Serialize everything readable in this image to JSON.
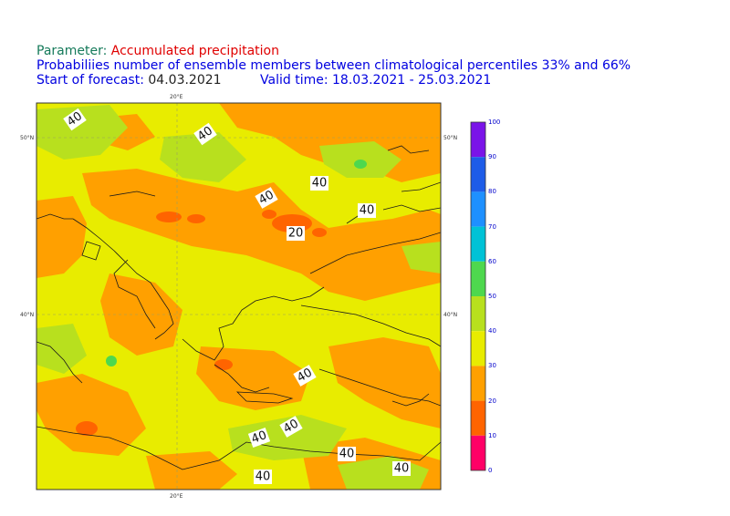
{
  "header": {
    "parameter_label": "Parameter:",
    "parameter_value": "Accumulated precipitation",
    "subtitle": "Probabiliies number of ensemble members between climatological percentiles 33% and 66%",
    "start_label": "Start of forecast:",
    "start_value": "04.03.2021",
    "valid_label": "Valid time:",
    "valid_value": "18.03.2021 - 25.03.2021"
  },
  "map": {
    "lon_ticks": [
      "20°E",
      "20°E"
    ],
    "lat_ticks": [
      "50°N",
      "50°N",
      "40°N",
      "40°N"
    ],
    "contour_labels": [
      "40",
      "40",
      "40",
      "40",
      "40",
      "20",
      "40",
      "40",
      "40",
      "40",
      "40",
      "40"
    ]
  },
  "colorbar": {
    "labels": [
      "100",
      "90",
      "80",
      "70",
      "60",
      "50",
      "40",
      "30",
      "20",
      "10",
      "0"
    ],
    "colors": [
      "#7a14e8",
      "#1e5ce8",
      "#1e90ff",
      "#00c2d6",
      "#4ed84e",
      "#b8e01e",
      "#e8ec00",
      "#ffa000",
      "#ff6400",
      "#ff0066"
    ]
  }
}
